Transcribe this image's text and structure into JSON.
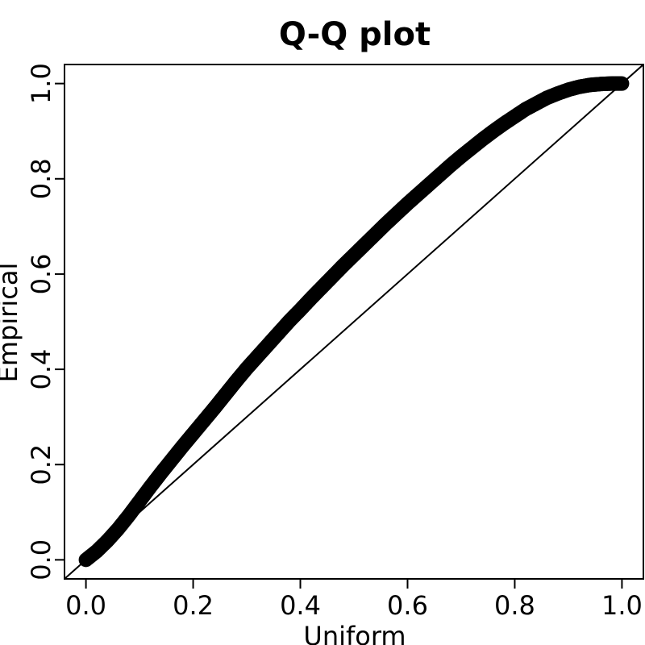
{
  "chart_data": {
    "type": "scatter",
    "title": "Q-Q plot",
    "xlabel": "Uniform",
    "ylabel": "Empirical",
    "xlim": [
      -0.04,
      1.04
    ],
    "ylim": [
      -0.04,
      1.04
    ],
    "xticks": [
      0.0,
      0.2,
      0.4,
      0.6,
      0.8,
      1.0
    ],
    "xtick_labels": [
      "0.0",
      "0.2",
      "0.4",
      "0.6",
      "0.8",
      "1.0"
    ],
    "yticks": [
      0.0,
      0.2,
      0.4,
      0.6,
      0.8,
      1.0
    ],
    "ytick_labels": [
      "0.0",
      "0.2",
      "0.4",
      "0.6",
      "0.8",
      "1.0"
    ],
    "grid": false,
    "legend": "none",
    "reference_line": {
      "slope": 1,
      "intercept": 0
    },
    "marker_color": "#000000",
    "series": [
      {
        "x": [
          0.0,
          0.02,
          0.04,
          0.06,
          0.08,
          0.1,
          0.12,
          0.14,
          0.16,
          0.18,
          0.2,
          0.22,
          0.24,
          0.26,
          0.28,
          0.3,
          0.32,
          0.34,
          0.36,
          0.38,
          0.4,
          0.42,
          0.44,
          0.46,
          0.48,
          0.5,
          0.52,
          0.54,
          0.56,
          0.58,
          0.6,
          0.62,
          0.64,
          0.66,
          0.68,
          0.7,
          0.72,
          0.74,
          0.76,
          0.78,
          0.8,
          0.82,
          0.84,
          0.86,
          0.88,
          0.9,
          0.92,
          0.94,
          0.96,
          0.98,
          1.0
        ],
        "y": [
          0.0,
          0.018,
          0.04,
          0.065,
          0.093,
          0.123,
          0.153,
          0.182,
          0.21,
          0.238,
          0.265,
          0.292,
          0.319,
          0.347,
          0.375,
          0.402,
          0.427,
          0.452,
          0.477,
          0.502,
          0.525,
          0.549,
          0.572,
          0.595,
          0.618,
          0.64,
          0.662,
          0.684,
          0.706,
          0.727,
          0.748,
          0.768,
          0.788,
          0.808,
          0.828,
          0.847,
          0.865,
          0.883,
          0.9,
          0.916,
          0.931,
          0.946,
          0.958,
          0.97,
          0.979,
          0.987,
          0.993,
          0.997,
          0.999,
          1.0,
          1.0
        ]
      }
    ]
  }
}
